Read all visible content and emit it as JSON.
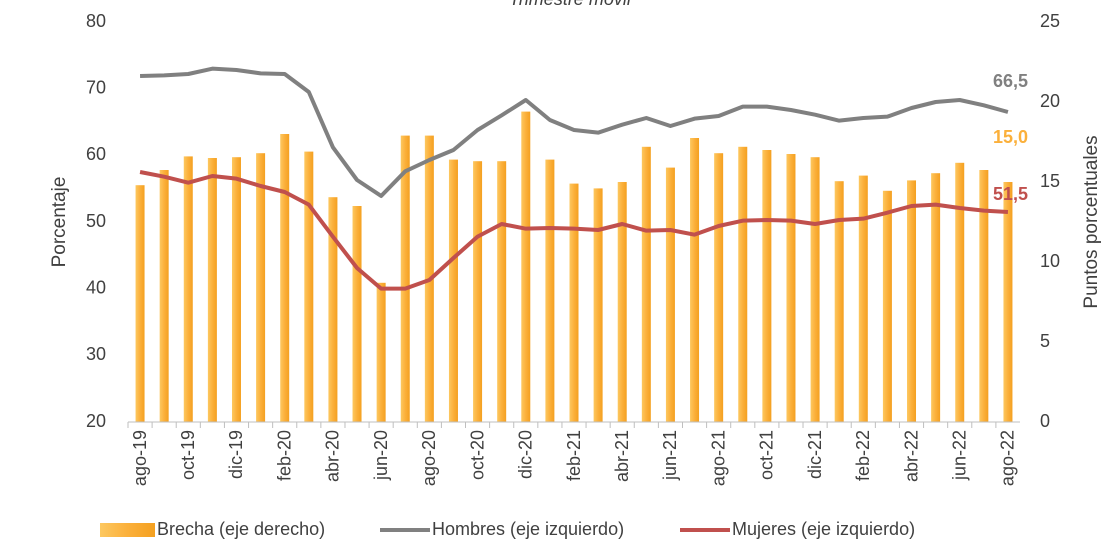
{
  "chart_data": {
    "type": "bar",
    "title": "Trimestre móvil",
    "y_label": "Porcentaje",
    "y2_label": "Puntos porcentuales",
    "categories": [
      "ago-19",
      null,
      "oct-19",
      null,
      "dic-19",
      null,
      "feb-20",
      null,
      "abr-20",
      null,
      "jun-20",
      null,
      "ago-20",
      null,
      "oct-20",
      null,
      "dic-20",
      null,
      "feb-21",
      null,
      "abr-21",
      null,
      "jun-21",
      null,
      "ago-21",
      null,
      "oct-21",
      null,
      "dic-21",
      null,
      "feb-22",
      null,
      "abr-22",
      null,
      "jun-22",
      null,
      "ago-22"
    ],
    "series": [
      {
        "name": "Brecha (eje derecho)",
        "type": "bar",
        "axis": "y2",
        "color": "#fbb03b",
        "values": [
          14.8,
          15.75,
          16.6,
          16.5,
          16.55,
          16.8,
          18.0,
          16.9,
          14.05,
          13.5,
          8.7,
          17.9,
          17.9,
          16.4,
          16.3,
          16.3,
          19.4,
          16.4,
          14.9,
          14.6,
          15.0,
          17.2,
          15.9,
          17.75,
          16.8,
          17.2,
          17.0,
          16.75,
          16.55,
          15.05,
          15.4,
          14.45,
          15.1,
          15.55,
          16.2,
          15.75,
          15.0
        ]
      },
      {
        "name": "Hombres (eje izquierdo)",
        "type": "line",
        "color": "#808080",
        "values": [
          71.9,
          72.0,
          72.2,
          73.0,
          72.8,
          72.3,
          72.2,
          69.5,
          61.2,
          56.3,
          53.9,
          57.6,
          59.3,
          60.8,
          63.8,
          66.0,
          68.3,
          65.3,
          63.8,
          63.4,
          64.6,
          65.6,
          64.4,
          65.5,
          65.9,
          67.3,
          67.3,
          66.8,
          66.1,
          65.2,
          65.6,
          65.8,
          67.1,
          68.0,
          68.3,
          67.5,
          66.5
        ]
      },
      {
        "name": "Mujeres (eje izquierdo)",
        "type": "line",
        "color": "#c0504d",
        "values": [
          57.5,
          56.8,
          55.9,
          56.9,
          56.5,
          55.4,
          54.5,
          52.6,
          47.8,
          43.1,
          40.0,
          40.0,
          41.3,
          44.6,
          47.8,
          49.7,
          49.0,
          49.1,
          49.0,
          48.8,
          49.7,
          48.7,
          48.8,
          48.1,
          49.4,
          50.2,
          50.3,
          50.2,
          49.7,
          50.3,
          50.5,
          51.4,
          52.4,
          52.6,
          52.1,
          51.7,
          51.5
        ]
      }
    ],
    "annotations": [
      "15,0",
      "66,5",
      "51,5"
    ],
    "ylim": [
      20,
      80
    ],
    "yticks": [
      20,
      30,
      40,
      50,
      60,
      70,
      80
    ],
    "y2lim": [
      0,
      25
    ],
    "y2ticks": [
      0,
      5,
      10,
      15,
      20,
      25
    ],
    "legend": "bottom"
  }
}
